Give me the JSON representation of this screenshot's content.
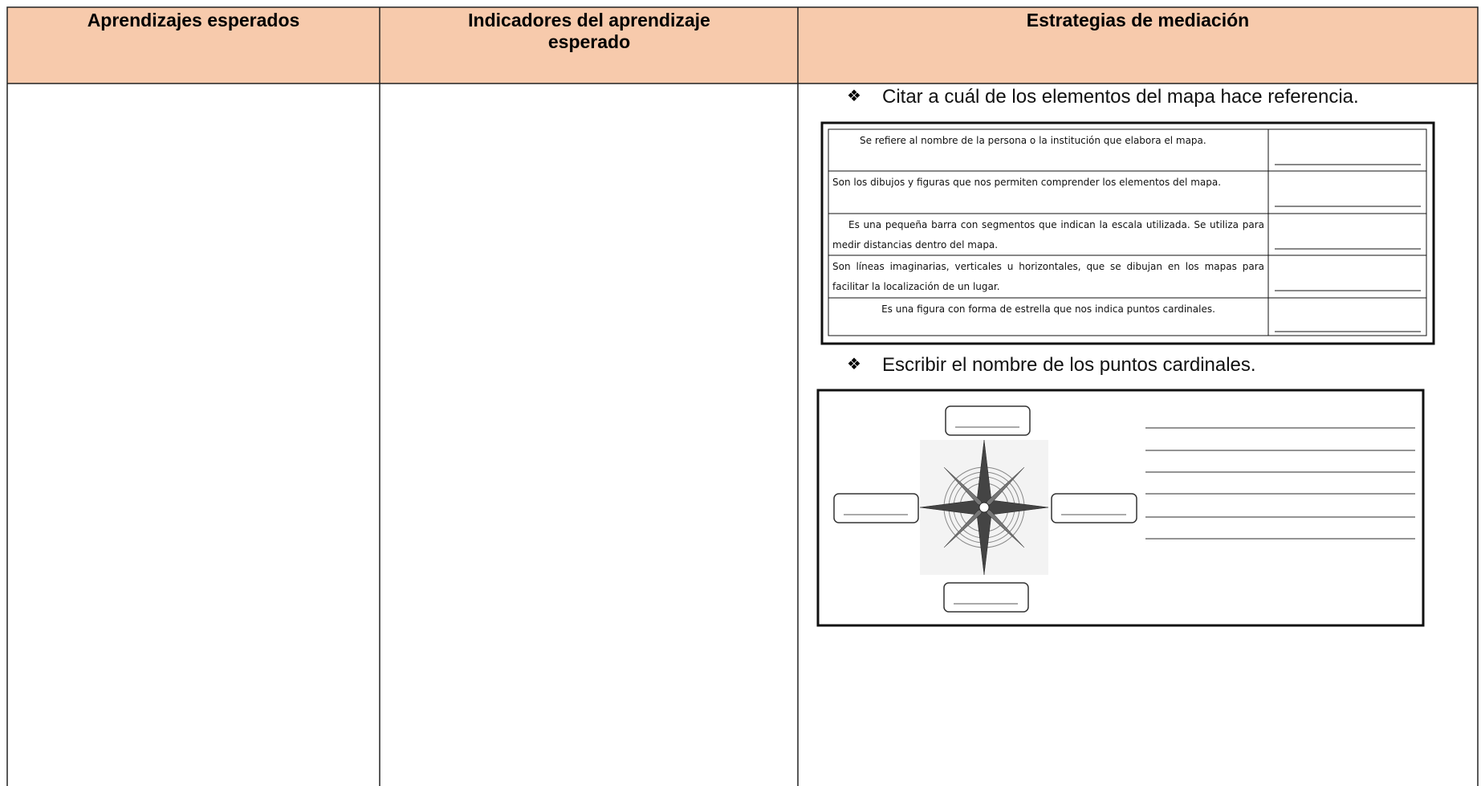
{
  "header": {
    "columns": [
      "Aprendizajes esperados",
      "Indicadores del aprendizaje esperado",
      "Estrategias de mediación"
    ]
  },
  "activities": [
    {
      "instruction": "Citar a cuál de los elementos del mapa hace referencia.",
      "table": {
        "rows": [
          "Se refiere al nombre de la persona o la institución que elabora el mapa.",
          "Son los dibujos y figuras que nos permiten comprender los elementos del mapa.",
          "Es una pequeña barra con segmentos que indican la escala utilizada. Se utiliza para medir distancias dentro del mapa.",
          "Son líneas imaginarias, verticales u horizontales, que se dibujan en los mapas para facilitar la localización de un lugar.",
          "Es una figura con forma de estrella que nos indica puntos cardinales."
        ]
      }
    },
    {
      "instruction": "Escribir el nombre de los puntos cardinales."
    }
  ]
}
